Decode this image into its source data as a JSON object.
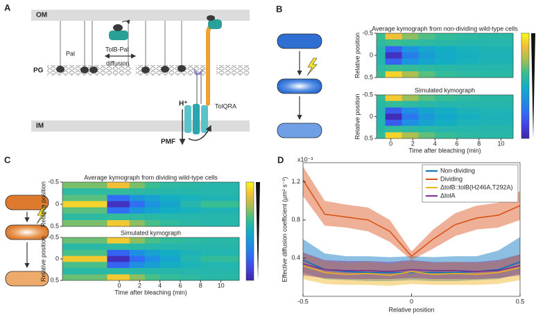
{
  "panel_labels": [
    "A",
    "B",
    "C",
    "D"
  ],
  "diagram_a": {
    "om": "OM",
    "pg": "PG",
    "im": "IM",
    "pal": "Pal",
    "tolb_pal": "TolB-Pal",
    "diffusion": "diffusion",
    "h": "H⁺",
    "tolqra": "TolQRA",
    "pmf": "PMF"
  },
  "colormap": [
    "#3e26a8",
    "#4543e3",
    "#2f6ef5",
    "#1c93df",
    "#13aec4",
    "#3bbf8f",
    "#a7bf52",
    "#f1bd39",
    "#f9fb15"
  ],
  "chart_data": [
    {
      "type": "heatmap",
      "title": "Average kymograph from non-dividing wild-type cells",
      "ylabel": "Relative position",
      "xlim": [
        -1.3,
        11.1
      ],
      "ylim": [
        -0.5,
        0.5
      ],
      "y_inverted": true,
      "vlim": [
        0,
        1
      ],
      "yticks": [
        -0.5,
        0,
        0.5
      ],
      "x_edges": [
        -1.3,
        -0.5,
        1,
        2.5,
        4,
        6,
        8,
        11.1
      ],
      "y_edges": [
        -0.5,
        -0.36,
        -0.21,
        -0.07,
        0.07,
        0.21,
        0.36,
        0.5
      ],
      "values": [
        [
          0.62,
          0.88,
          0.72,
          0.65,
          0.6,
          0.58,
          0.57
        ],
        [
          0.58,
          0.62,
          0.6,
          0.58,
          0.57,
          0.56,
          0.56
        ],
        [
          0.56,
          0.22,
          0.38,
          0.46,
          0.5,
          0.52,
          0.54
        ],
        [
          0.55,
          0.05,
          0.3,
          0.42,
          0.48,
          0.51,
          0.53
        ],
        [
          0.56,
          0.22,
          0.38,
          0.46,
          0.5,
          0.52,
          0.54
        ],
        [
          0.58,
          0.62,
          0.6,
          0.58,
          0.57,
          0.56,
          0.56
        ],
        [
          0.62,
          0.92,
          0.76,
          0.66,
          0.6,
          0.58,
          0.57
        ]
      ]
    },
    {
      "type": "heatmap",
      "title": "Simulated kymograph",
      "ylabel": "Relative position",
      "xlabel": "Time after bleaching (min)",
      "xlim": [
        -1.3,
        11.1
      ],
      "ylim": [
        -0.5,
        0.5
      ],
      "y_inverted": true,
      "vlim": [
        0,
        1
      ],
      "yticks": [
        -0.5,
        0,
        0.5
      ],
      "xticks": [
        0,
        2,
        4,
        6,
        8,
        10
      ],
      "x_edges": [
        -1.3,
        -0.5,
        1,
        2.5,
        4,
        6,
        8,
        11.1
      ],
      "y_edges": [
        -0.5,
        -0.36,
        -0.21,
        -0.07,
        0.07,
        0.21,
        0.36,
        0.5
      ],
      "values": [
        [
          0.6,
          0.9,
          0.74,
          0.66,
          0.61,
          0.58,
          0.57
        ],
        [
          0.57,
          0.6,
          0.58,
          0.57,
          0.56,
          0.56,
          0.56
        ],
        [
          0.55,
          0.2,
          0.36,
          0.45,
          0.5,
          0.53,
          0.54
        ],
        [
          0.55,
          0.03,
          0.28,
          0.4,
          0.47,
          0.51,
          0.53
        ],
        [
          0.55,
          0.2,
          0.36,
          0.45,
          0.5,
          0.53,
          0.54
        ],
        [
          0.57,
          0.6,
          0.58,
          0.57,
          0.56,
          0.56,
          0.56
        ],
        [
          0.6,
          0.92,
          0.76,
          0.67,
          0.61,
          0.58,
          0.57
        ]
      ]
    },
    {
      "type": "heatmap",
      "title": "Average kymograph from dividing wild-type cells",
      "ylabel": "Relative position",
      "xlim": [
        -5.6,
        11.8
      ],
      "ylim": [
        -0.5,
        0.5
      ],
      "y_inverted": true,
      "vlim": [
        0,
        1
      ],
      "yticks": [
        -0.5,
        0,
        0.5
      ],
      "x_edges": [
        -5.6,
        -1.2,
        1,
        2.5,
        4,
        6,
        8,
        11.8
      ],
      "y_edges": [
        -0.5,
        -0.36,
        -0.21,
        -0.07,
        0.07,
        0.21,
        0.36,
        0.5
      ],
      "values": [
        [
          0.7,
          0.88,
          0.7,
          0.62,
          0.58,
          0.57,
          0.56
        ],
        [
          0.58,
          0.6,
          0.58,
          0.57,
          0.56,
          0.56,
          0.56
        ],
        [
          0.66,
          0.25,
          0.38,
          0.45,
          0.5,
          0.52,
          0.54
        ],
        [
          0.92,
          0.05,
          0.25,
          0.38,
          0.46,
          0.56,
          0.62
        ],
        [
          0.66,
          0.25,
          0.38,
          0.45,
          0.5,
          0.52,
          0.54
        ],
        [
          0.58,
          0.6,
          0.58,
          0.57,
          0.56,
          0.56,
          0.56
        ],
        [
          0.7,
          0.9,
          0.72,
          0.64,
          0.59,
          0.57,
          0.56
        ]
      ]
    },
    {
      "type": "heatmap",
      "title": "Simulated kymograph",
      "ylabel": "Relative position",
      "xlabel": "Time after bleaching (min)",
      "xlim": [
        -5.6,
        11.8
      ],
      "ylim": [
        -0.5,
        0.5
      ],
      "y_inverted": true,
      "vlim": [
        0,
        1
      ],
      "yticks": [
        -0.5,
        0,
        0.5
      ],
      "xticks": [
        0,
        2,
        4,
        6,
        8,
        10
      ],
      "x_edges": [
        -5.6,
        -1.2,
        1,
        2.5,
        4,
        6,
        8,
        11.8
      ],
      "y_edges": [
        -0.5,
        -0.36,
        -0.21,
        -0.07,
        0.07,
        0.21,
        0.36,
        0.5
      ],
      "values": [
        [
          0.68,
          0.9,
          0.72,
          0.64,
          0.6,
          0.58,
          0.57
        ],
        [
          0.57,
          0.58,
          0.57,
          0.56,
          0.56,
          0.56,
          0.56
        ],
        [
          0.64,
          0.22,
          0.36,
          0.44,
          0.5,
          0.53,
          0.55
        ],
        [
          0.9,
          0.04,
          0.24,
          0.36,
          0.46,
          0.55,
          0.6
        ],
        [
          0.64,
          0.22,
          0.36,
          0.44,
          0.5,
          0.53,
          0.55
        ],
        [
          0.57,
          0.58,
          0.57,
          0.56,
          0.56,
          0.56,
          0.56
        ],
        [
          0.68,
          0.9,
          0.72,
          0.64,
          0.6,
          0.58,
          0.57
        ]
      ]
    },
    {
      "type": "line",
      "xlabel": "Relative position",
      "ylabel": "Effective diffusion coefficient (µm² s⁻¹)",
      "scale_label": "x10⁻³",
      "xlim": [
        -0.5,
        0.5
      ],
      "ylim": [
        0,
        1.4
      ],
      "xticks": [
        -0.5,
        0,
        0.5
      ],
      "yticks": [
        0.4,
        0.8,
        1.2
      ],
      "legend": "upper right",
      "band_opacity": 0.45,
      "x": [
        -0.5,
        -0.4,
        -0.3,
        -0.2,
        -0.1,
        0,
        0.1,
        0.2,
        0.3,
        0.4,
        0.5
      ],
      "series": [
        {
          "name": "Non-dividing",
          "color": "#0072bd",
          "values": [
            0.38,
            0.28,
            0.26,
            0.25,
            0.25,
            0.25,
            0.25,
            0.25,
            0.26,
            0.28,
            0.36
          ],
          "lower": [
            0.25,
            0.18,
            0.17,
            0.16,
            0.16,
            0.17,
            0.16,
            0.16,
            0.17,
            0.18,
            0.24
          ],
          "upper": [
            0.6,
            0.45,
            0.42,
            0.42,
            0.41,
            0.42,
            0.41,
            0.42,
            0.42,
            0.48,
            0.62
          ]
        },
        {
          "name": "Dividing",
          "color": "#d95319",
          "values": [
            1.22,
            0.86,
            0.83,
            0.8,
            0.68,
            0.42,
            0.6,
            0.75,
            0.82,
            0.85,
            0.95
          ],
          "lower": [
            1.05,
            0.74,
            0.72,
            0.68,
            0.57,
            0.38,
            0.5,
            0.63,
            0.7,
            0.72,
            0.8
          ],
          "upper": [
            1.36,
            1.0,
            0.96,
            0.93,
            0.8,
            0.47,
            0.7,
            0.87,
            0.95,
            0.98,
            1.1
          ]
        },
        {
          "name": "ΔtolB::tolB(H246A,T292A)",
          "color": "#edb120",
          "values": [
            0.32,
            0.25,
            0.23,
            0.24,
            0.22,
            0.26,
            0.23,
            0.24,
            0.23,
            0.25,
            0.3
          ],
          "lower": [
            0.18,
            0.13,
            0.12,
            0.12,
            0.11,
            0.13,
            0.12,
            0.12,
            0.12,
            0.13,
            0.17
          ],
          "upper": [
            0.45,
            0.37,
            0.35,
            0.36,
            0.34,
            0.37,
            0.35,
            0.36,
            0.35,
            0.37,
            0.44
          ]
        },
        {
          "name": "ΔtolA",
          "color": "#7e2f8e",
          "values": [
            0.34,
            0.28,
            0.27,
            0.27,
            0.26,
            0.28,
            0.27,
            0.27,
            0.26,
            0.27,
            0.32
          ],
          "lower": [
            0.22,
            0.19,
            0.18,
            0.18,
            0.18,
            0.19,
            0.18,
            0.18,
            0.18,
            0.19,
            0.22
          ],
          "upper": [
            0.46,
            0.38,
            0.37,
            0.37,
            0.36,
            0.38,
            0.36,
            0.36,
            0.36,
            0.38,
            0.44
          ]
        }
      ]
    }
  ]
}
